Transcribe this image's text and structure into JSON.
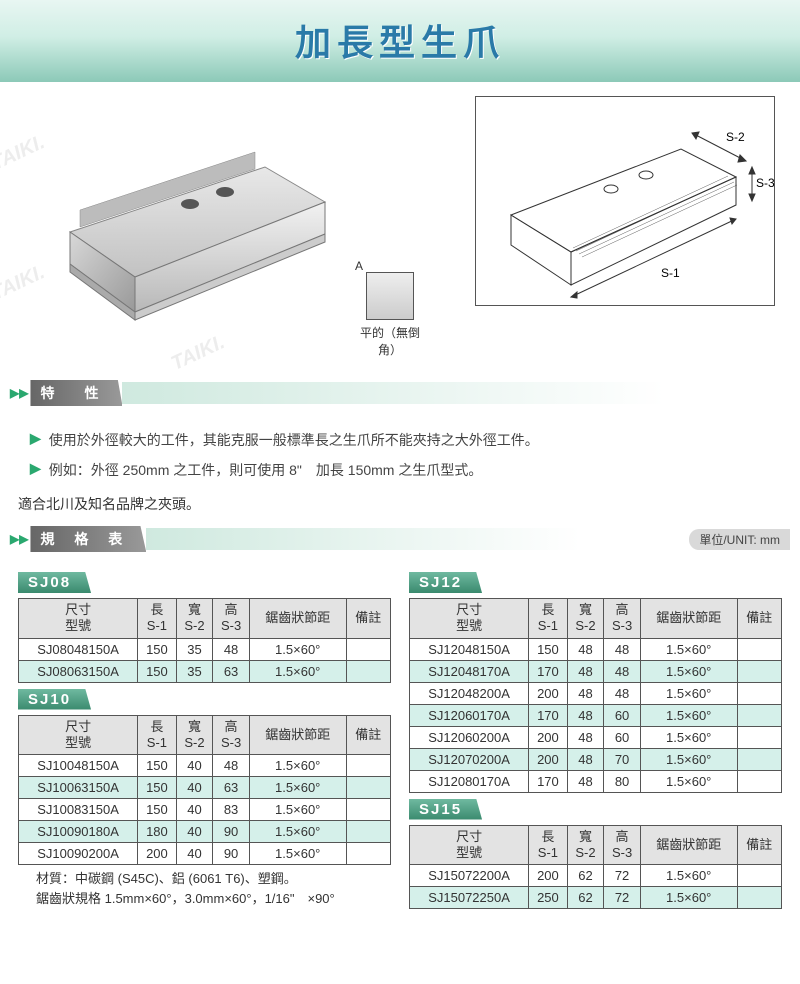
{
  "title": "加長型生爪",
  "watermark": "TAIKI.",
  "diagram_caption": "平的（無倒角）",
  "dim_labels": {
    "s1": "S-1",
    "s2": "S-2",
    "s3": "S-3"
  },
  "section_features": "特　性",
  "feature_bullets": [
    "使用於外徑較大的工件，其能克服一般標準長之生爪所不能夾持之大外徑工件。",
    "例如：外徑 250mm 之工件，則可使用 8\"　加長 150mm 之生爪型式。"
  ],
  "compat_note": "適合北川及知名品牌之夾頭。",
  "section_spectable": "規 格 表",
  "unit_label": "單位/UNIT: mm",
  "table_headers": {
    "model": {
      "l1": "尺寸",
      "l2": "型號"
    },
    "s1": {
      "l1": "長",
      "l2": "S-1"
    },
    "s2": {
      "l1": "寬",
      "l2": "S-2"
    },
    "s3": {
      "l1": "高",
      "l2": "S-3"
    },
    "pitch": "鋸齒狀節距",
    "remark": "備註"
  },
  "groups": {
    "sj08": {
      "label": "SJ08",
      "rows": [
        {
          "m": "SJ08048150A",
          "s1": "150",
          "s2": "35",
          "s3": "48",
          "p": "1.5×60°",
          "r": ""
        },
        {
          "m": "SJ08063150A",
          "s1": "150",
          "s2": "35",
          "s3": "63",
          "p": "1.5×60°",
          "r": ""
        }
      ]
    },
    "sj10": {
      "label": "SJ10",
      "rows": [
        {
          "m": "SJ10048150A",
          "s1": "150",
          "s2": "40",
          "s3": "48",
          "p": "1.5×60°",
          "r": ""
        },
        {
          "m": "SJ10063150A",
          "s1": "150",
          "s2": "40",
          "s3": "63",
          "p": "1.5×60°",
          "r": ""
        },
        {
          "m": "SJ10083150A",
          "s1": "150",
          "s2": "40",
          "s3": "83",
          "p": "1.5×60°",
          "r": ""
        },
        {
          "m": "SJ10090180A",
          "s1": "180",
          "s2": "40",
          "s3": "90",
          "p": "1.5×60°",
          "r": ""
        },
        {
          "m": "SJ10090200A",
          "s1": "200",
          "s2": "40",
          "s3": "90",
          "p": "1.5×60°",
          "r": ""
        }
      ]
    },
    "sj12": {
      "label": "SJ12",
      "rows": [
        {
          "m": "SJ12048150A",
          "s1": "150",
          "s2": "48",
          "s3": "48",
          "p": "1.5×60°",
          "r": ""
        },
        {
          "m": "SJ12048170A",
          "s1": "170",
          "s2": "48",
          "s3": "48",
          "p": "1.5×60°",
          "r": ""
        },
        {
          "m": "SJ12048200A",
          "s1": "200",
          "s2": "48",
          "s3": "48",
          "p": "1.5×60°",
          "r": ""
        },
        {
          "m": "SJ12060170A",
          "s1": "170",
          "s2": "48",
          "s3": "60",
          "p": "1.5×60°",
          "r": ""
        },
        {
          "m": "SJ12060200A",
          "s1": "200",
          "s2": "48",
          "s3": "60",
          "p": "1.5×60°",
          "r": ""
        },
        {
          "m": "SJ12070200A",
          "s1": "200",
          "s2": "48",
          "s3": "70",
          "p": "1.5×60°",
          "r": ""
        },
        {
          "m": "SJ12080170A",
          "s1": "170",
          "s2": "48",
          "s3": "80",
          "p": "1.5×60°",
          "r": ""
        }
      ]
    },
    "sj15": {
      "label": "SJ15",
      "rows": [
        {
          "m": "SJ15072200A",
          "s1": "200",
          "s2": "62",
          "s3": "72",
          "p": "1.5×60°",
          "r": ""
        },
        {
          "m": "SJ15072250A",
          "s1": "250",
          "s2": "62",
          "s3": "72",
          "p": "1.5×60°",
          "r": ""
        }
      ]
    }
  },
  "footnotes": [
    "材質：中碳鋼 (S45C)、鋁 (6061 T6)、塑鋼。",
    "鋸齒狀規格 1.5mm×60°，3.0mm×60°，1/16\"　×90°"
  ],
  "colors": {
    "header_text": "#2a7aa8",
    "accent": "#2aa86f",
    "alt_row": "#d5f0ea",
    "th_bg": "#e3e3e3"
  }
}
